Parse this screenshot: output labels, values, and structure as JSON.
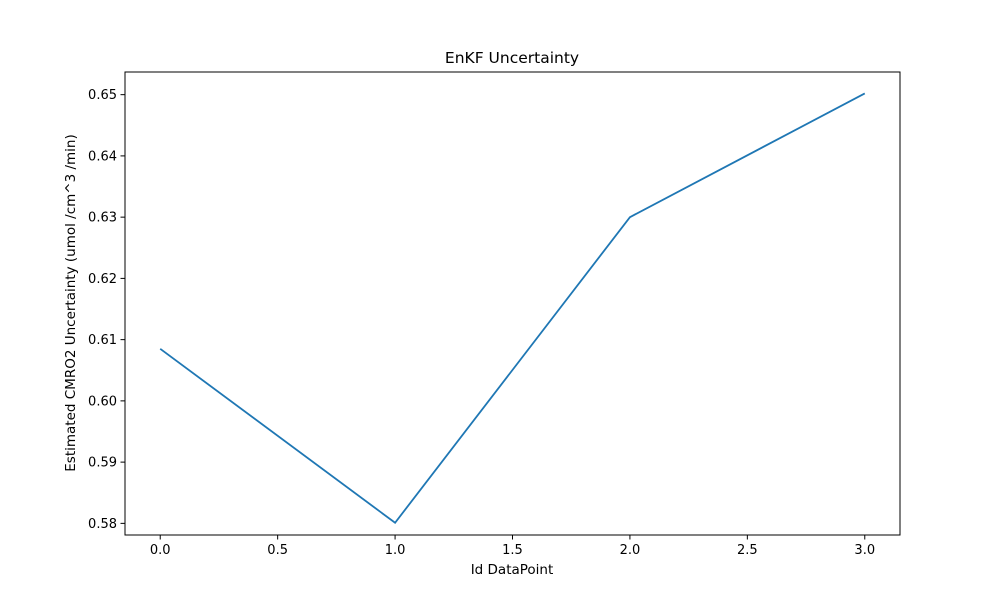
{
  "chart_data": {
    "type": "line",
    "title": "EnKF Uncertainty",
    "xlabel": "Id DataPoint",
    "ylabel": "Estimated CMRO2 Uncertainty (umol /cm^3 /min)",
    "x": [
      0,
      1,
      2,
      3
    ],
    "series": [
      {
        "values": [
          0.6085,
          0.5801,
          0.63,
          0.6502
        ]
      }
    ],
    "xlim": [
      -0.15,
      3.15
    ],
    "ylim": [
      0.5781,
      0.6537
    ],
    "xticks": [
      0.0,
      0.5,
      1.0,
      1.5,
      2.0,
      2.5,
      3.0
    ],
    "xtick_labels": [
      "0.0",
      "0.5",
      "1.0",
      "1.5",
      "2.0",
      "2.5",
      "3.0"
    ],
    "yticks": [
      0.58,
      0.59,
      0.6,
      0.61,
      0.62,
      0.63,
      0.64,
      0.65
    ],
    "ytick_labels": [
      "0.58",
      "0.59",
      "0.60",
      "0.61",
      "0.62",
      "0.63",
      "0.64",
      "0.65"
    ],
    "grid": false,
    "line_color": "#1f77b4"
  }
}
